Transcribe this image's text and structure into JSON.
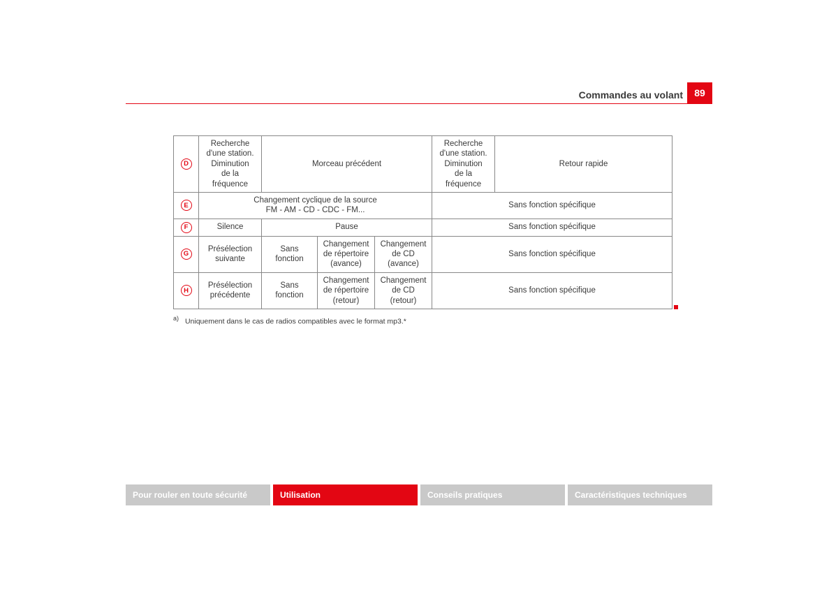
{
  "header": {
    "title": "Commandes au volant",
    "page_number": "89"
  },
  "table": {
    "rows": [
      {
        "letter": "D",
        "cells": [
          {
            "colspan": 1,
            "text": "Recherche d'une station. Diminution\nde la fréquence"
          },
          {
            "colspan": 3,
            "text": "Morceau précédent"
          },
          {
            "colspan": 1,
            "text": "Recherche d'une station. Diminution\nde la fréquence"
          },
          {
            "colspan": 1,
            "text": "Retour rapide"
          }
        ]
      },
      {
        "letter": "E",
        "cells": [
          {
            "colspan": 4,
            "text": "Changement cyclique de la source\nFM - AM - CD - CDC - FM..."
          },
          {
            "colspan": 2,
            "text": "Sans fonction spécifique"
          }
        ]
      },
      {
        "letter": "F",
        "cells": [
          {
            "colspan": 1,
            "text": "Silence"
          },
          {
            "colspan": 3,
            "text": "Pause"
          },
          {
            "colspan": 2,
            "text": "Sans fonction spécifique"
          }
        ]
      },
      {
        "letter": "G",
        "cells": [
          {
            "colspan": 1,
            "text": "Présélection suivante"
          },
          {
            "colspan": 1,
            "text": "Sans fonction"
          },
          {
            "colspan": 1,
            "text": "Changement de répertoire\n(avance)"
          },
          {
            "colspan": 1,
            "text": "Changement de CD\n(avance)"
          },
          {
            "colspan": 2,
            "text": "Sans fonction spécifique"
          }
        ]
      },
      {
        "letter": "H",
        "cells": [
          {
            "colspan": 1,
            "text": "Présélection précédente"
          },
          {
            "colspan": 1,
            "text": "Sans fonction"
          },
          {
            "colspan": 1,
            "text": "Changement de répertoire\n(retour)"
          },
          {
            "colspan": 1,
            "text": "Changement de CD\n(retour)"
          },
          {
            "colspan": 2,
            "text": "Sans fonction spécifique"
          }
        ]
      }
    ]
  },
  "footnote": {
    "sup": "a)",
    "text": "Uniquement dans le cas de radios compatibles avec le format mp3.*"
  },
  "tabs": [
    {
      "label": "Pour rouler en toute sécurité",
      "active": false
    },
    {
      "label": "Utilisation",
      "active": true
    },
    {
      "label": "Conseils pratiques",
      "active": false
    },
    {
      "label": "Caractéristiques techniques",
      "active": false
    }
  ],
  "colors": {
    "brand_red": "#e30613",
    "tab_inactive": "#c9c9c9",
    "text": "#3a3a3a",
    "border": "#888888",
    "background": "#ffffff"
  }
}
